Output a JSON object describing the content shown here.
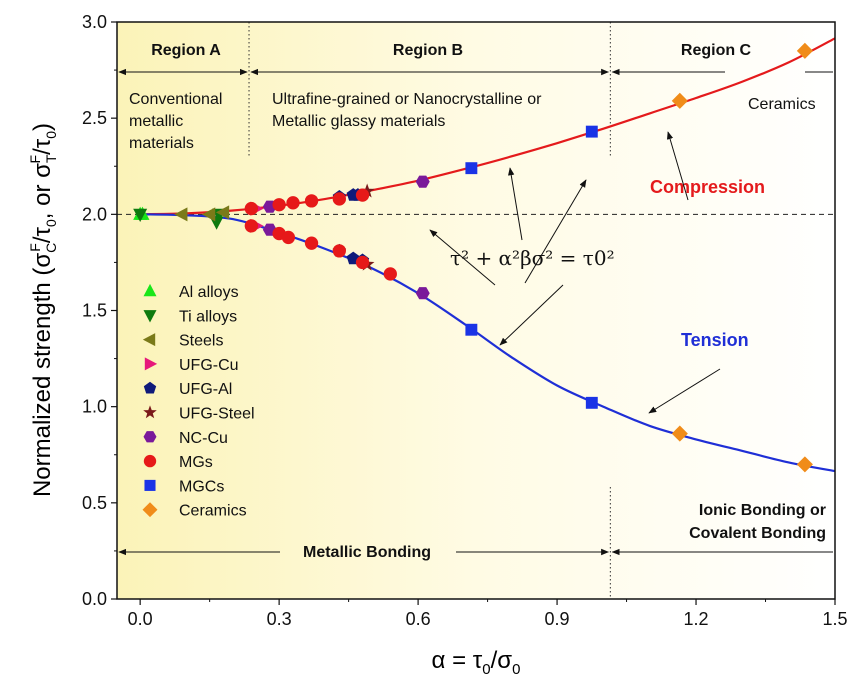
{
  "chart_data": {
    "type": "scatter",
    "xlabel": "α = τ0/σ0",
    "ylabel": "Normalized strength (σCF/τ0, or σTF/τ0)",
    "xlim": [
      -0.05,
      1.5
    ],
    "ylim": [
      0.0,
      3.0
    ],
    "xticks": [
      0.0,
      0.3,
      0.6,
      0.9,
      1.2,
      1.5
    ],
    "xtick_labels": [
      "0.0",
      "0.3",
      "0.6",
      "0.9",
      "1.2",
      "1.5"
    ],
    "yticks": [
      0.0,
      0.5,
      1.0,
      1.5,
      2.0,
      2.5,
      3.0
    ],
    "ytick_labels": [
      "0.0",
      "0.5",
      "1.0",
      "1.5",
      "2.0",
      "2.5",
      "3.0"
    ],
    "reference_line": {
      "y": 2.0,
      "style": "dashed"
    },
    "region_dividers": [
      0.235,
      1.015
    ],
    "regions": [
      {
        "label": "Region A",
        "description": [
          "Conventional",
          "metallic",
          "materials"
        ]
      },
      {
        "label": "Region B",
        "description": [
          "Ultrafine-grained or Nanocrystalline or",
          "Metallic glassy materials"
        ]
      },
      {
        "label": "Region C",
        "description": [
          "Ceramics"
        ]
      }
    ],
    "bonding": {
      "metallic": "Metallic Bonding",
      "ionic": [
        "Ionic Bonding or",
        "Covalent Bonding"
      ]
    },
    "curves": [
      {
        "name": "Compression",
        "color": "#e41a1c",
        "x": [
          0.0,
          0.1,
          0.2,
          0.3,
          0.4,
          0.5,
          0.6,
          0.7,
          0.8,
          0.9,
          1.0,
          1.1,
          1.2,
          1.3,
          1.4,
          1.5
        ],
        "y": [
          2.0,
          2.005,
          2.02,
          2.045,
          2.08,
          2.125,
          2.175,
          2.235,
          2.3,
          2.37,
          2.445,
          2.525,
          2.605,
          2.69,
          2.79,
          2.915
        ]
      },
      {
        "name": "Tension",
        "color": "#1f2fd6",
        "x": [
          0.0,
          0.1,
          0.2,
          0.3,
          0.4,
          0.5,
          0.6,
          0.7,
          0.8,
          0.9,
          1.0,
          1.1,
          1.2,
          1.3,
          1.4,
          1.5
        ],
        "y": [
          2.0,
          1.995,
          1.975,
          1.905,
          1.82,
          1.72,
          1.59,
          1.43,
          1.26,
          1.11,
          1.0,
          0.9,
          0.83,
          0.77,
          0.71,
          0.665
        ]
      }
    ],
    "equation": "τ² + α²βσ² = τ0²",
    "series": [
      {
        "name": "Al alloys",
        "marker": "triangle-up",
        "color": "#19e619",
        "points": [
          [
            0.0,
            2.0
          ],
          [
            0.005,
            2.0
          ]
        ]
      },
      {
        "name": "Ti alloys",
        "marker": "triangle-down",
        "color": "#0e7a0e",
        "points": [
          [
            0.0,
            2.0
          ],
          [
            0.165,
            1.96
          ],
          [
            0.17,
            2.0
          ]
        ]
      },
      {
        "name": "Steels",
        "marker": "triangle-left",
        "color": "#7a7a19",
        "points": [
          [
            0.09,
            2.0
          ],
          [
            0.15,
            2.0
          ],
          [
            0.18,
            2.01
          ]
        ]
      },
      {
        "name": "UFG-Cu",
        "marker": "triangle-right",
        "color": "#e6197a",
        "points": [
          [
            0.25,
            2.03
          ],
          [
            0.25,
            1.94
          ]
        ]
      },
      {
        "name": "UFG-Al",
        "marker": "pentagon",
        "color": "#0f1a7a",
        "points": [
          [
            0.43,
            2.09
          ],
          [
            0.46,
            2.1
          ],
          [
            0.47,
            2.1
          ],
          [
            0.43,
            1.81
          ],
          [
            0.46,
            1.77
          ],
          [
            0.48,
            1.76
          ]
        ]
      },
      {
        "name": "UFG-Steel",
        "marker": "star",
        "color": "#7a1919",
        "points": [
          [
            0.49,
            2.12
          ],
          [
            0.49,
            1.74
          ]
        ]
      },
      {
        "name": "NC-Cu",
        "marker": "hexagon",
        "color": "#7a199a",
        "points": [
          [
            0.28,
            2.04
          ],
          [
            0.61,
            2.17
          ],
          [
            0.28,
            1.92
          ],
          [
            0.61,
            1.59
          ]
        ]
      },
      {
        "name": "MGs",
        "marker": "circle",
        "color": "#e61919",
        "points": [
          [
            0.24,
            2.03
          ],
          [
            0.3,
            2.05
          ],
          [
            0.33,
            2.06
          ],
          [
            0.37,
            2.07
          ],
          [
            0.43,
            2.08
          ],
          [
            0.48,
            2.1
          ],
          [
            0.24,
            1.94
          ],
          [
            0.3,
            1.9
          ],
          [
            0.32,
            1.88
          ],
          [
            0.37,
            1.85
          ],
          [
            0.43,
            1.81
          ],
          [
            0.48,
            1.75
          ],
          [
            0.54,
            1.69
          ]
        ]
      },
      {
        "name": "MGCs",
        "marker": "square",
        "color": "#1a33e6",
        "points": [
          [
            0.715,
            2.24
          ],
          [
            0.975,
            2.43
          ],
          [
            0.715,
            1.4
          ],
          [
            0.975,
            1.02
          ]
        ]
      },
      {
        "name": "Ceramics",
        "marker": "diamond",
        "color": "#f08c19",
        "points": [
          [
            1.165,
            2.59
          ],
          [
            1.435,
            2.85
          ],
          [
            1.165,
            0.86
          ],
          [
            1.435,
            0.7
          ]
        ]
      }
    ]
  }
}
